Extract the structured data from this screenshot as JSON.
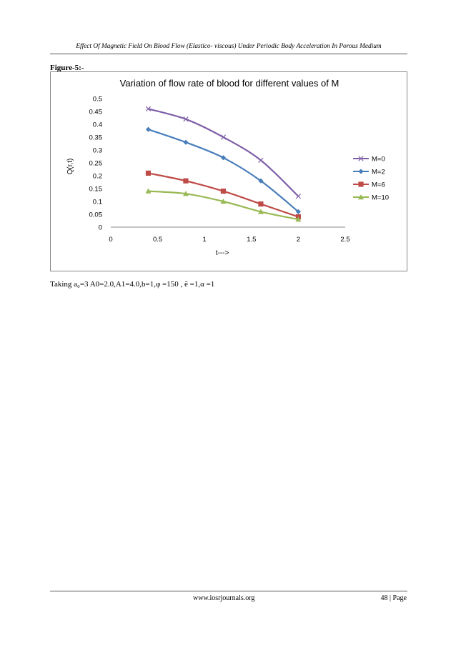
{
  "header": {
    "running_title": "Effect Of Magnetic Field On Blood Flow (Elastico- viscous) Under Periodic Body Acceleration In Porous Medium"
  },
  "figure": {
    "label": "Figure-5:-",
    "caption": "Taking a₀=3 A0=2.0,A1=4.0,b=1,φ =150 , ẽ =1,α =1"
  },
  "footer": {
    "site": "www.iosrjournals.org",
    "page": "48 | Page"
  },
  "chart_data": {
    "type": "line",
    "title": "Variation of flow rate of blood for different values of M",
    "xlabel": "t--->",
    "ylabel": "Q(r,t)",
    "xlim": [
      0,
      2.5
    ],
    "ylim": [
      0,
      0.5
    ],
    "x_ticks": [
      "0",
      "0.5",
      "1",
      "1.5",
      "2",
      "2.5"
    ],
    "y_ticks": [
      "0",
      "0.05",
      "0.1",
      "0.15",
      "0.2",
      "0.25",
      "0.3",
      "0.35",
      "0.4",
      "0.45",
      "0.5"
    ],
    "grid": false,
    "legend_position": "right",
    "x": [
      0.4,
      0.8,
      1.2,
      1.6,
      2.0
    ],
    "series": [
      {
        "name": "M=0",
        "values": [
          0.46,
          0.42,
          0.35,
          0.26,
          0.12
        ],
        "color": "#7f5fa8",
        "marker": "x"
      },
      {
        "name": "M=2",
        "values": [
          0.38,
          0.33,
          0.27,
          0.18,
          0.06
        ],
        "color": "#4a7ebb",
        "marker": "diamond"
      },
      {
        "name": "M=6",
        "values": [
          0.21,
          0.18,
          0.14,
          0.09,
          0.04
        ],
        "color": "#be4b48",
        "marker": "square"
      },
      {
        "name": "M=10",
        "values": [
          0.14,
          0.13,
          0.1,
          0.06,
          0.03
        ],
        "color": "#98b954",
        "marker": "triangle"
      }
    ]
  }
}
